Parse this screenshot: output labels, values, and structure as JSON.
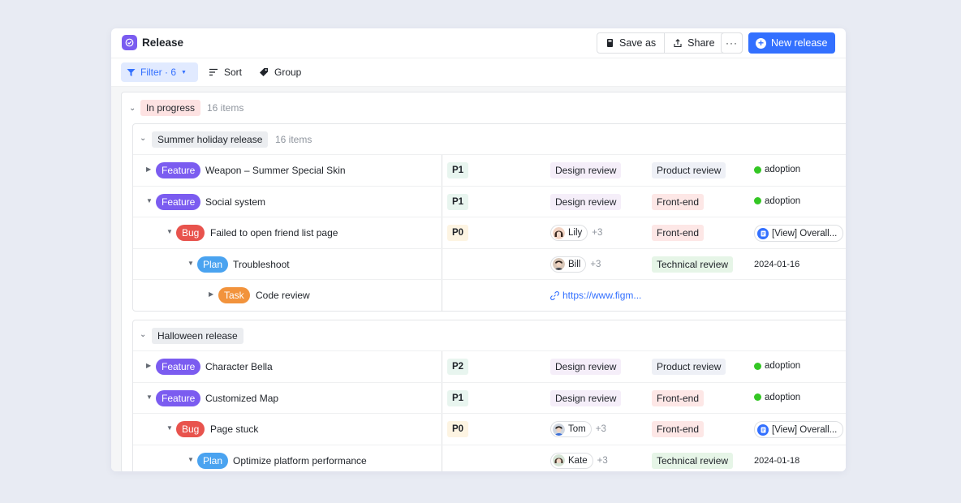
{
  "window": {
    "title": "Release",
    "actions": {
      "save_as": "Save as",
      "share": "Share",
      "more": "···",
      "new_release": "New release"
    }
  },
  "toolbar": {
    "filter": "Filter · 6",
    "sort": "Sort",
    "group": "Group"
  },
  "colors": {
    "accent": "#3370ff",
    "feature": "#7b5cf0",
    "bug": "#e8534d",
    "plan": "#4aa3f0",
    "task": "#f2933c",
    "status_dot": "#34c724"
  },
  "in_progress": {
    "label": "In progress",
    "count": "16 items"
  },
  "groups": [
    {
      "label": "Summer holiday release",
      "count": "16 items",
      "rows": [
        {
          "type": "Feature",
          "title": "Weapon – Summer Special Skin",
          "priority": "P1",
          "stage": "Design review",
          "review": "Product review",
          "status": "adoption"
        },
        {
          "type": "Feature",
          "title": "Social system",
          "priority": "P1",
          "stage": "Design review",
          "review": "Front-end",
          "status": "adoption"
        },
        {
          "type": "Bug",
          "title": "Failed to open friend list page",
          "priority": "P0",
          "person": "Lily",
          "more": "+3",
          "review": "Front-end",
          "doc": "[View] Overall..."
        },
        {
          "type": "Plan",
          "title": "Troubleshoot",
          "person": "Bill",
          "more": "+3",
          "review": "Technical review",
          "date": "2024-01-16"
        },
        {
          "type": "Task",
          "title": "Code review",
          "link": "https://www.figm..."
        }
      ]
    },
    {
      "label": "Halloween release",
      "rows": [
        {
          "type": "Feature",
          "title": "Character Bella",
          "priority": "P2",
          "stage": "Design review",
          "review": "Product review",
          "status": "adoption"
        },
        {
          "type": "Feature",
          "title": "Customized Map",
          "priority": "P1",
          "stage": "Design review",
          "review": "Front-end",
          "status": "adoption"
        },
        {
          "type": "Bug",
          "title": "Page stuck",
          "priority": "P0",
          "person": "Tom",
          "more": "+3",
          "review": "Front-end",
          "doc": "[View] Overall..."
        },
        {
          "type": "Plan",
          "title": "Optimize platform performance",
          "person": "Kate",
          "more": "+3",
          "review": "Technical review",
          "date": "2024-01-18"
        }
      ]
    }
  ]
}
